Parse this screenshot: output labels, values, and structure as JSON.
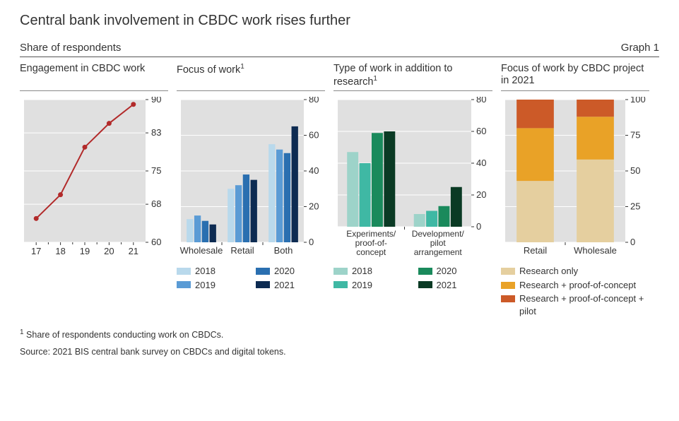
{
  "title": "Central bank involvement in CBDC work rises further",
  "subtitle": "Share of respondents",
  "graph_label": "Graph 1",
  "footnote_marker": "1",
  "footnote_text": "  Share of respondents conducting work on CBDCs.",
  "source": "Source: 2021 BIS central bank survey on CBDCs and digital tokens.",
  "panel1": {
    "title": "Engagement in CBDC work",
    "type": "line",
    "x": [
      "17",
      "18",
      "19",
      "20",
      "21"
    ],
    "y": [
      65,
      70,
      80,
      85,
      89
    ],
    "ymin": 60,
    "ymax": 90,
    "yticks": [
      60,
      68,
      75,
      83,
      90
    ],
    "line_color": "#b22a2a",
    "bg": "#e0e0e0",
    "grid_color": "#ffffff",
    "marker_r": 3.5
  },
  "panel2": {
    "title": "Focus of work",
    "sup": "1",
    "type": "grouped-bar",
    "categories": [
      "Wholesale",
      "Retail",
      "Both"
    ],
    "series": [
      {
        "label": "2018",
        "color": "#b9d9ec",
        "values": [
          13,
          30,
          55
        ]
      },
      {
        "label": "2019",
        "color": "#5a9bd5",
        "values": [
          15,
          32,
          52
        ]
      },
      {
        "label": "2020",
        "color": "#2a6fb0",
        "values": [
          12,
          38,
          50
        ]
      },
      {
        "label": "2021",
        "color": "#0d2b52",
        "values": [
          10,
          35,
          65
        ]
      }
    ],
    "ymin": 0,
    "ymax": 80,
    "yticks": [
      0,
      20,
      40,
      60,
      80
    ],
    "bg": "#e0e0e0",
    "grid_color": "#ffffff"
  },
  "panel3": {
    "title": "Type of work in addition to research",
    "sup": "1",
    "type": "grouped-bar",
    "categories": [
      "Experiments/\nproof-of-\nconcept",
      "Development/\npilot\narrangement"
    ],
    "categories_lines": [
      [
        "Experiments/",
        "proof-of-",
        "concept"
      ],
      [
        "Development/",
        "pilot",
        "arrangement"
      ]
    ],
    "series": [
      {
        "label": "2018",
        "color": "#9dd3c9",
        "values": [
          47,
          8
        ]
      },
      {
        "label": "2019",
        "color": "#3fb8a4",
        "values": [
          40,
          10
        ]
      },
      {
        "label": "2020",
        "color": "#1a8a5c",
        "values": [
          59,
          13
        ]
      },
      {
        "label": "2021",
        "color": "#0a3a24",
        "values": [
          60,
          25
        ]
      }
    ],
    "ymin": 0,
    "ymax": 80,
    "yticks": [
      0,
      20,
      40,
      60,
      80
    ],
    "bg": "#e0e0e0",
    "grid_color": "#ffffff"
  },
  "panel4": {
    "title": "Focus of work by CBDC project in 2021",
    "type": "stacked-bar",
    "categories": [
      "Retail",
      "Wholesale"
    ],
    "series": [
      {
        "label": "Research only",
        "color": "#e5cf9f",
        "values": [
          43,
          58
        ]
      },
      {
        "label": "Research + proof-of-concept",
        "color": "#e9a227",
        "values": [
          37,
          30
        ]
      },
      {
        "label": "Research + proof-of-concept + pilot",
        "color": "#cc5a28",
        "values": [
          20,
          12
        ]
      }
    ],
    "ymin": 0,
    "ymax": 100,
    "yticks": [
      0,
      25,
      50,
      75,
      100
    ],
    "bg": "#e0e0e0",
    "grid_color": "#ffffff"
  },
  "legend2": [
    {
      "label": "2018",
      "color": "#b9d9ec"
    },
    {
      "label": "2020",
      "color": "#2a6fb0"
    },
    {
      "label": "2019",
      "color": "#5a9bd5"
    },
    {
      "label": "2021",
      "color": "#0d2b52"
    }
  ],
  "legend3": [
    {
      "label": "2018",
      "color": "#9dd3c9"
    },
    {
      "label": "2020",
      "color": "#1a8a5c"
    },
    {
      "label": "2019",
      "color": "#3fb8a4"
    },
    {
      "label": "2021",
      "color": "#0a3a24"
    }
  ],
  "legend4": [
    {
      "label": "Research only",
      "color": "#e5cf9f"
    },
    {
      "label": "Research + proof-of-concept",
      "color": "#e9a227"
    },
    {
      "label": "Research + proof-of-concept + pilot",
      "color": "#cc5a28"
    }
  ]
}
